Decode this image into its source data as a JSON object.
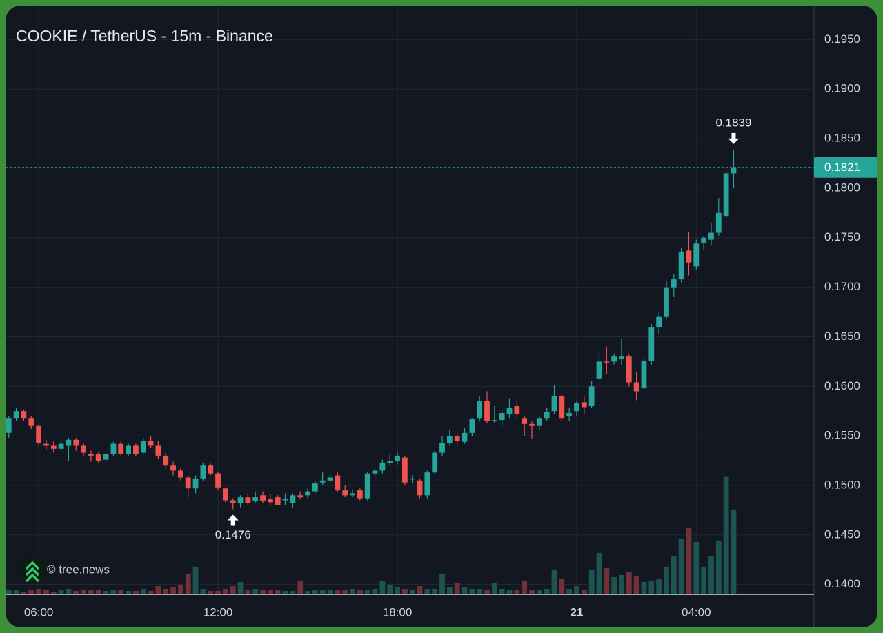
{
  "chart_data": {
    "type": "candlestick",
    "title": "COOKIE / TetherUS - 15m - Binance",
    "watermark": "© tree.news",
    "up_color": "#26a69a",
    "down_color": "#ef5350",
    "up_volume_color": "#1c5550",
    "down_volume_color": "#70313a",
    "grid": true,
    "xlim": [
      4.89,
      31.94
    ],
    "ylim": [
      0.139,
      0.1983
    ],
    "y2lim": [
      0,
      850
    ],
    "xticks": [
      {
        "value": 6,
        "label": "06:00"
      },
      {
        "value": 12,
        "label": "12:00"
      },
      {
        "value": 18,
        "label": "18:00"
      },
      {
        "value": 24,
        "label": "21"
      },
      {
        "value": 28,
        "label": "04:00"
      }
    ],
    "yticks": [
      {
        "value": 0.195,
        "label": "0.1950"
      },
      {
        "value": 0.19,
        "label": "0.1900"
      },
      {
        "value": 0.185,
        "label": "0.1850"
      },
      {
        "value": 0.18,
        "label": "0.1800"
      },
      {
        "value": 0.175,
        "label": "0.1750"
      },
      {
        "value": 0.17,
        "label": "0.1700"
      },
      {
        "value": 0.165,
        "label": "0.1650"
      },
      {
        "value": 0.16,
        "label": "0.1600"
      },
      {
        "value": 0.155,
        "label": "0.1550"
      },
      {
        "value": 0.15,
        "label": "0.1500"
      },
      {
        "value": 0.145,
        "label": "0.1450"
      },
      {
        "value": 0.14,
        "label": "0.1400"
      }
    ],
    "last_price": 0.1821,
    "annotations": [
      {
        "x": 29.25,
        "value": 0.1839,
        "position": "above"
      },
      {
        "x": 12.5,
        "value": 0.1476,
        "position": "below"
      }
    ],
    "x": [
      5,
      5.25,
      5.5,
      5.75,
      6,
      6.25,
      6.5,
      6.75,
      7,
      7.25,
      7.5,
      7.75,
      8,
      8.25,
      8.5,
      8.75,
      9,
      9.25,
      9.5,
      9.75,
      10,
      10.25,
      10.5,
      10.75,
      11,
      11.25,
      11.5,
      11.75,
      12,
      12.25,
      12.5,
      12.75,
      13,
      13.25,
      13.5,
      13.75,
      14,
      14.25,
      14.5,
      14.75,
      15,
      15.25,
      15.5,
      15.75,
      16,
      16.25,
      16.5,
      16.75,
      17,
      17.25,
      17.5,
      17.75,
      18,
      18.25,
      18.5,
      18.75,
      19,
      19.25,
      19.5,
      19.75,
      20,
      20.25,
      20.5,
      20.75,
      21,
      21.25,
      21.5,
      21.75,
      22,
      22.25,
      22.5,
      22.75,
      23,
      23.25,
      23.5,
      23.75,
      24,
      24.25,
      24.5,
      24.75,
      25,
      25.25,
      25.5,
      25.75,
      26,
      26.25,
      26.5,
      26.75,
      27,
      27.25,
      27.5,
      27.75,
      28,
      28.25,
      28.5,
      28.75,
      29,
      29.25
    ],
    "open": [
      0.1553,
      0.1568,
      0.1575,
      0.1568,
      0.156,
      0.1542,
      0.154,
      0.1537,
      0.154,
      0.1546,
      0.154,
      0.1532,
      0.1532,
      0.1526,
      0.1532,
      0.1542,
      0.1532,
      0.154,
      0.1533,
      0.1545,
      0.154,
      0.153,
      0.152,
      0.1515,
      0.1508,
      0.1497,
      0.1507,
      0.152,
      0.1512,
      0.1497,
      0.1485,
      0.1482,
      0.1488,
      0.1484,
      0.149,
      0.1486,
      0.1488,
      0.1485,
      0.1482,
      0.149,
      0.149,
      0.1494,
      0.1503,
      0.1505,
      0.151,
      0.1495,
      0.149,
      0.1495,
      0.1487,
      0.1512,
      0.1515,
      0.1523,
      0.1525,
      0.1528,
      0.1506,
      0.1505,
      0.149,
      0.1513,
      0.1533,
      0.1543,
      0.155,
      0.1544,
      0.1553,
      0.1568,
      0.1585,
      0.1565,
      0.1566,
      0.1572,
      0.158,
      0.1568,
      0.1562,
      0.156,
      0.1568,
      0.1575,
      0.159,
      0.157,
      0.1575,
      0.1584,
      0.158,
      0.1608,
      0.1625,
      0.1625,
      0.1628,
      0.163,
      0.1604,
      0.1598,
      0.1626,
      0.166,
      0.167,
      0.17,
      0.1708,
      0.1737,
      0.1721,
      0.1745,
      0.1748,
      0.1755,
      0.1772,
      0.1815
    ],
    "high": [
      0.157,
      0.1578,
      0.1576,
      0.157,
      0.1562,
      0.1546,
      0.1545,
      0.1546,
      0.1548,
      0.1548,
      0.1543,
      0.1535,
      0.1534,
      0.1535,
      0.1544,
      0.1545,
      0.1542,
      0.1542,
      0.1548,
      0.155,
      0.1545,
      0.1533,
      0.1524,
      0.1518,
      0.151,
      0.151,
      0.1523,
      0.1522,
      0.1514,
      0.1498,
      0.1487,
      0.149,
      0.1492,
      0.1494,
      0.1494,
      0.1491,
      0.149,
      0.1492,
      0.1492,
      0.1494,
      0.1497,
      0.1505,
      0.1513,
      0.1512,
      0.1513,
      0.15,
      0.1496,
      0.1497,
      0.1514,
      0.1517,
      0.1526,
      0.1532,
      0.1534,
      0.153,
      0.151,
      0.1507,
      0.1515,
      0.1535,
      0.155,
      0.1556,
      0.1553,
      0.1558,
      0.1568,
      0.159,
      0.1595,
      0.158,
      0.1576,
      0.1588,
      0.1586,
      0.157,
      0.1565,
      0.157,
      0.1578,
      0.1601,
      0.1592,
      0.1578,
      0.1585,
      0.159,
      0.1605,
      0.1634,
      0.164,
      0.1633,
      0.1648,
      0.1632,
      0.1615,
      0.163,
      0.1663,
      0.1675,
      0.1706,
      0.1713,
      0.174,
      0.1756,
      0.1748,
      0.1752,
      0.1765,
      0.179,
      0.1818,
      0.1839
    ],
    "low": [
      0.1548,
      0.1565,
      0.1565,
      0.1557,
      0.154,
      0.1536,
      0.1533,
      0.1534,
      0.1525,
      0.1535,
      0.153,
      0.1524,
      0.1523,
      0.1524,
      0.153,
      0.153,
      0.1529,
      0.153,
      0.1531,
      0.1538,
      0.1527,
      0.1517,
      0.151,
      0.1505,
      0.1488,
      0.1492,
      0.1505,
      0.151,
      0.1495,
      0.1483,
      0.1476,
      0.1478,
      0.148,
      0.1482,
      0.1482,
      0.148,
      0.148,
      0.148,
      0.1477,
      0.1486,
      0.1487,
      0.1492,
      0.15,
      0.1502,
      0.1493,
      0.1488,
      0.1488,
      0.1485,
      0.1485,
      0.1508,
      0.1512,
      0.152,
      0.1521,
      0.15,
      0.1502,
      0.1487,
      0.1487,
      0.1511,
      0.153,
      0.154,
      0.154,
      0.1542,
      0.155,
      0.1565,
      0.1563,
      0.1563,
      0.156,
      0.1568,
      0.1568,
      0.155,
      0.1547,
      0.1556,
      0.1565,
      0.1572,
      0.1565,
      0.1565,
      0.157,
      0.1572,
      0.1578,
      0.1606,
      0.1612,
      0.1622,
      0.1622,
      0.16,
      0.1586,
      0.1598,
      0.1622,
      0.1653,
      0.1668,
      0.169,
      0.1705,
      0.1712,
      0.1718,
      0.1738,
      0.1742,
      0.1752,
      0.177,
      0.18
    ],
    "close": [
      0.1568,
      0.1575,
      0.1568,
      0.156,
      0.1543,
      0.154,
      0.1537,
      0.1542,
      0.1546,
      0.154,
      0.1533,
      0.153,
      0.1525,
      0.1532,
      0.1542,
      0.1532,
      0.154,
      0.1532,
      0.1545,
      0.154,
      0.153,
      0.152,
      0.1515,
      0.1508,
      0.1497,
      0.1507,
      0.152,
      0.1512,
      0.1498,
      0.1485,
      0.1482,
      0.1488,
      0.1482,
      0.1488,
      0.1484,
      0.1483,
      0.148,
      0.1486,
      0.149,
      0.1488,
      0.1494,
      0.1502,
      0.1505,
      0.1508,
      0.1495,
      0.149,
      0.1492,
      0.1487,
      0.1512,
      0.1515,
      0.1523,
      0.1525,
      0.153,
      0.1503,
      0.1507,
      0.149,
      0.1513,
      0.1533,
      0.1543,
      0.155,
      0.1545,
      0.1553,
      0.1567,
      0.1585,
      0.1565,
      0.1566,
      0.1573,
      0.1578,
      0.1572,
      0.1562,
      0.156,
      0.1568,
      0.1574,
      0.159,
      0.1568,
      0.1573,
      0.1583,
      0.1579,
      0.16,
      0.1625,
      0.1624,
      0.163,
      0.163,
      0.1604,
      0.1595,
      0.1626,
      0.166,
      0.167,
      0.17,
      0.1708,
      0.1736,
      0.1725,
      0.1744,
      0.175,
      0.1755,
      0.1775,
      0.1815,
      0.1821
    ],
    "volume": [
      6,
      6,
      4,
      6,
      8,
      6,
      4,
      6,
      8,
      5,
      6,
      6,
      6,
      5,
      6,
      6,
      5,
      5,
      8,
      5,
      12,
      8,
      10,
      14,
      30,
      40,
      8,
      5,
      5,
      8,
      12,
      18,
      6,
      8,
      6,
      6,
      6,
      5,
      5,
      20,
      5,
      6,
      6,
      6,
      6,
      6,
      8,
      6,
      6,
      8,
      20,
      14,
      10,
      8,
      6,
      12,
      8,
      8,
      30,
      10,
      16,
      10,
      8,
      8,
      6,
      16,
      8,
      6,
      6,
      20,
      6,
      6,
      8,
      36,
      22,
      8,
      12,
      6,
      36,
      60,
      38,
      25,
      28,
      32,
      26,
      18,
      20,
      22,
      40,
      55,
      80,
      97,
      76,
      40,
      56,
      78,
      170,
      123
    ]
  }
}
